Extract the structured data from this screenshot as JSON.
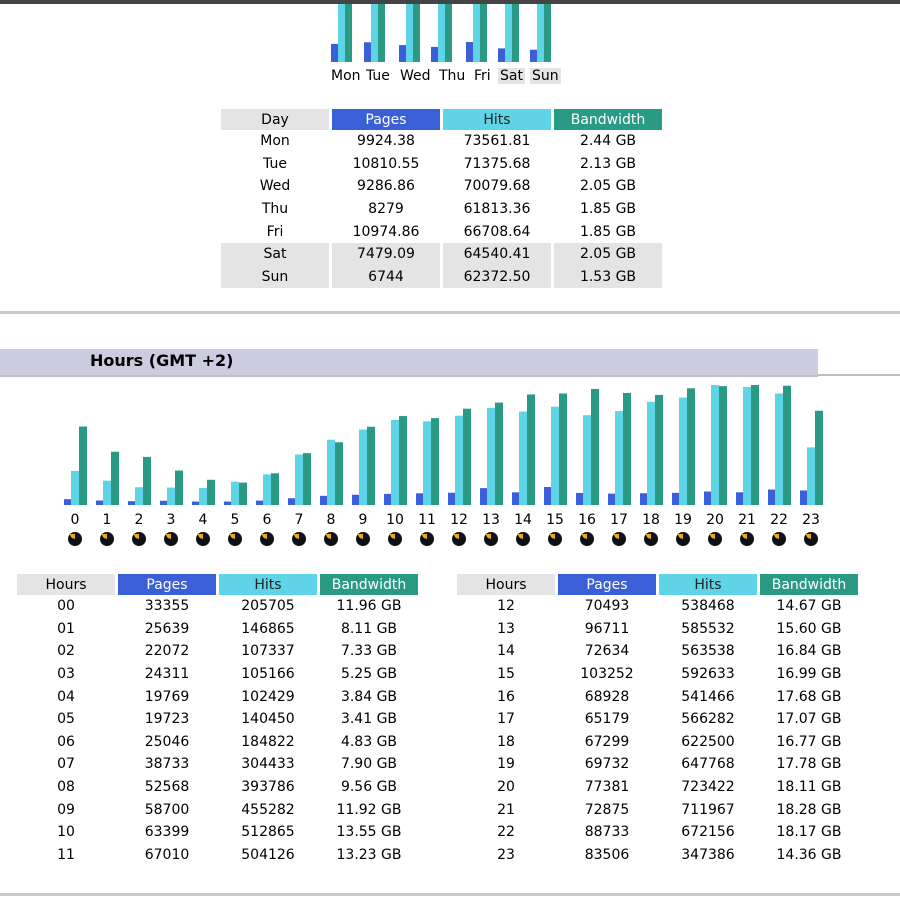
{
  "days_chart": {
    "days": [
      "Mon",
      "Tue",
      "Wed",
      "Thu",
      "Fri",
      "Sat",
      "Sun"
    ],
    "weekend": [
      "Sat",
      "Sun"
    ]
  },
  "days_table": {
    "headers": {
      "key": "Day",
      "pages": "Pages",
      "hits": "Hits",
      "bandwidth": "Bandwidth"
    },
    "rows": [
      {
        "day": "Mon",
        "pages": "9924.38",
        "hits": "73561.81",
        "bw": "2.44 GB"
      },
      {
        "day": "Tue",
        "pages": "10810.55",
        "hits": "71375.68",
        "bw": "2.13 GB"
      },
      {
        "day": "Wed",
        "pages": "9286.86",
        "hits": "70079.68",
        "bw": "2.05 GB"
      },
      {
        "day": "Thu",
        "pages": "8279",
        "hits": "61813.36",
        "bw": "1.85 GB"
      },
      {
        "day": "Fri",
        "pages": "10974.86",
        "hits": "66708.64",
        "bw": "1.85 GB"
      },
      {
        "day": "Sat",
        "pages": "7479.09",
        "hits": "64540.41",
        "bw": "2.05 GB"
      },
      {
        "day": "Sun",
        "pages": "6744",
        "hits": "62372.50",
        "bw": "1.53 GB"
      }
    ]
  },
  "hours_section": {
    "title": "Hours (GMT +2)"
  },
  "hours_chart": {
    "labels": [
      "0",
      "1",
      "2",
      "3",
      "4",
      "5",
      "6",
      "7",
      "8",
      "9",
      "10",
      "11",
      "12",
      "13",
      "14",
      "15",
      "16",
      "17",
      "18",
      "19",
      "20",
      "21",
      "22",
      "23"
    ]
  },
  "hours_table": {
    "headers": {
      "key": "Hours",
      "pages": "Pages",
      "hits": "Hits",
      "bandwidth": "Bandwidth"
    },
    "left_rows": [
      {
        "hour": "00",
        "pages": "33355",
        "hits": "205705",
        "bw": "11.96 GB"
      },
      {
        "hour": "01",
        "pages": "25639",
        "hits": "146865",
        "bw": "8.11 GB"
      },
      {
        "hour": "02",
        "pages": "22072",
        "hits": "107337",
        "bw": "7.33 GB"
      },
      {
        "hour": "03",
        "pages": "24311",
        "hits": "105166",
        "bw": "5.25 GB"
      },
      {
        "hour": "04",
        "pages": "19769",
        "hits": "102429",
        "bw": "3.84 GB"
      },
      {
        "hour": "05",
        "pages": "19723",
        "hits": "140450",
        "bw": "3.41 GB"
      },
      {
        "hour": "06",
        "pages": "25046",
        "hits": "184822",
        "bw": "4.83 GB"
      },
      {
        "hour": "07",
        "pages": "38733",
        "hits": "304433",
        "bw": "7.90 GB"
      },
      {
        "hour": "08",
        "pages": "52568",
        "hits": "393786",
        "bw": "9.56 GB"
      },
      {
        "hour": "09",
        "pages": "58700",
        "hits": "455282",
        "bw": "11.92 GB"
      },
      {
        "hour": "10",
        "pages": "63399",
        "hits": "512865",
        "bw": "13.55 GB"
      },
      {
        "hour": "11",
        "pages": "67010",
        "hits": "504126",
        "bw": "13.23 GB"
      }
    ],
    "right_rows": [
      {
        "hour": "12",
        "pages": "70493",
        "hits": "538468",
        "bw": "14.67 GB"
      },
      {
        "hour": "13",
        "pages": "96711",
        "hits": "585532",
        "bw": "15.60 GB"
      },
      {
        "hour": "14",
        "pages": "72634",
        "hits": "563538",
        "bw": "16.84 GB"
      },
      {
        "hour": "15",
        "pages": "103252",
        "hits": "592633",
        "bw": "16.99 GB"
      },
      {
        "hour": "16",
        "pages": "68928",
        "hits": "541466",
        "bw": "17.68 GB"
      },
      {
        "hour": "17",
        "pages": "65179",
        "hits": "566282",
        "bw": "17.07 GB"
      },
      {
        "hour": "18",
        "pages": "67299",
        "hits": "622500",
        "bw": "16.77 GB"
      },
      {
        "hour": "19",
        "pages": "69732",
        "hits": "647768",
        "bw": "17.78 GB"
      },
      {
        "hour": "20",
        "pages": "77381",
        "hits": "723422",
        "bw": "18.11 GB"
      },
      {
        "hour": "21",
        "pages": "72875",
        "hits": "711967",
        "bw": "18.28 GB"
      },
      {
        "hour": "22",
        "pages": "88733",
        "hits": "672156",
        "bw": "18.17 GB"
      },
      {
        "hour": "23",
        "pages": "83506",
        "hits": "347386",
        "bw": "14.36 GB"
      }
    ]
  },
  "colors": {
    "pages": "#3a5fd6",
    "hits": "#5fd4e6",
    "bandwidth": "#2a9a84",
    "key_header": "#e4e4e4",
    "section_bar": "#cdcbe0"
  },
  "icons": {
    "hour_marker": "clock-icon"
  }
}
